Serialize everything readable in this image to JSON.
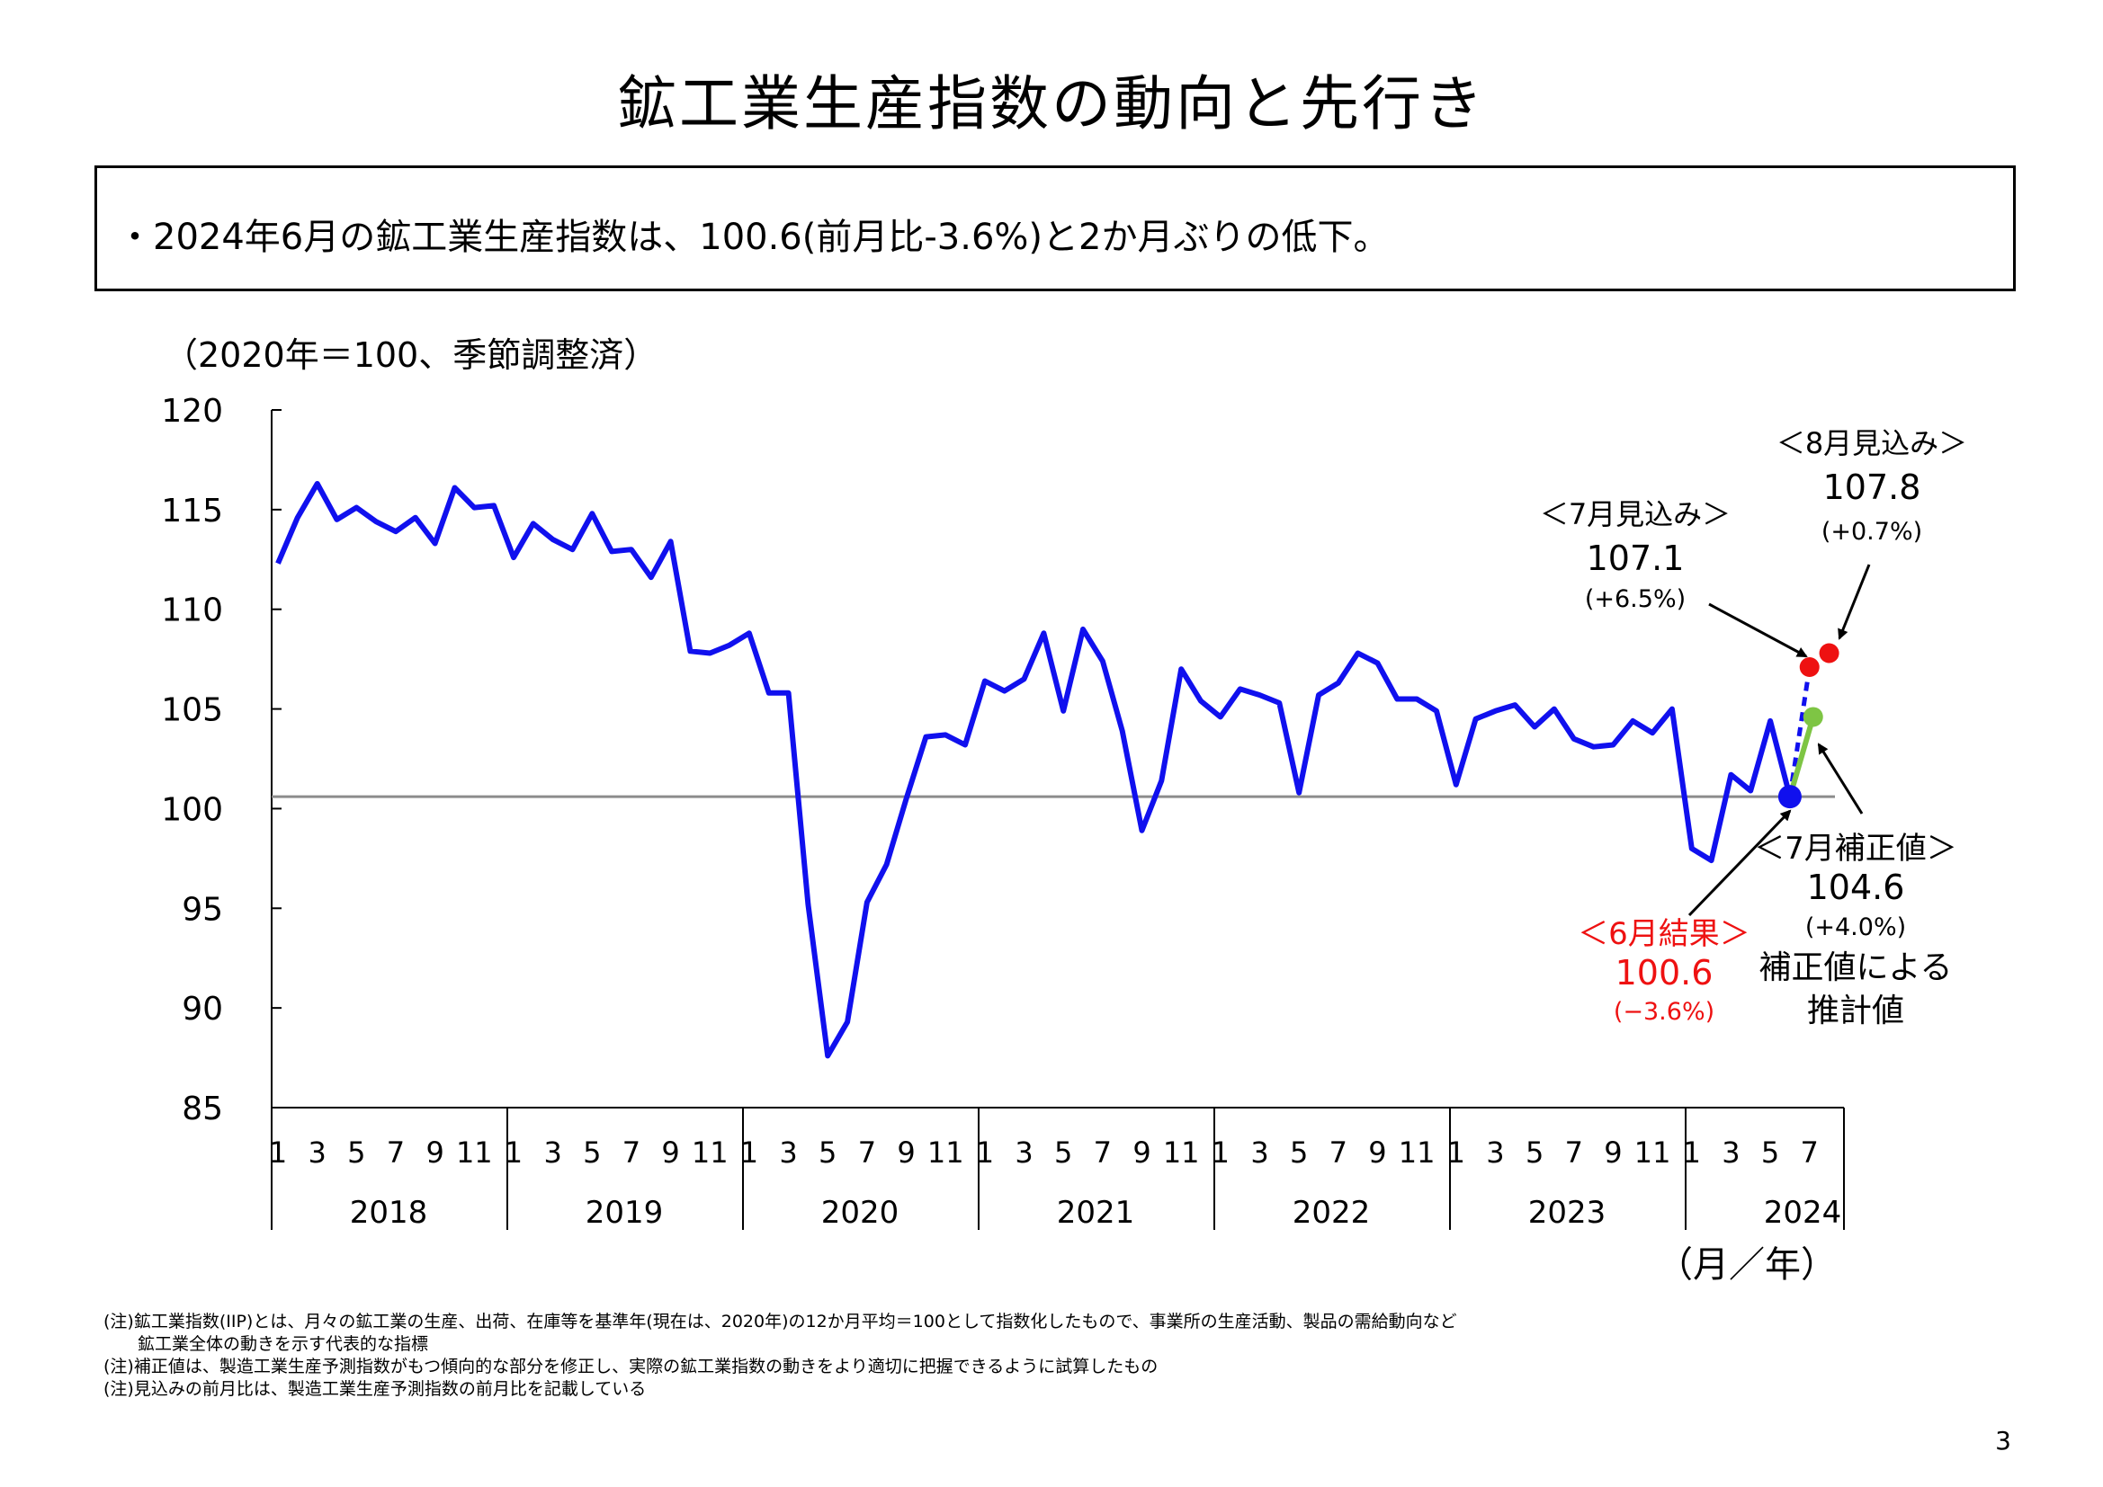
{
  "title": "鉱工業生産指数の動向と先行き",
  "summary": "・2024年6月の鉱工業生産指数は、100.6(前月比-3.6%)と2か月ぶりの低下。",
  "units_note": "（2020年＝100、季節調整済）",
  "axis_unit": "（月／年）",
  "page_number": "3",
  "notes": [
    "(注)鉱工業指数(IIP)とは、月々の鉱工業の生産、出荷、在庫等を基準年(現在は、2020年)の12か月平均＝100として指数化したもので、事業所の生産活動、製品の需給動向など",
    "　　鉱工業全体の動きを示す代表的な指標",
    "(注)補正値は、製造工業生産予測指数がもつ傾向的な部分を修正し、実際の鉱工業指数の動きをより適切に把握できるように試算したもの",
    "(注)見込みの前月比は、製造工業生産予測指数の前月比を記載している"
  ],
  "colors": {
    "series": "#1010ee",
    "reference_line": "#8c8c8c",
    "june_marker": "#1010ee",
    "forecast_markers": "#ee1111",
    "corrected_marker": "#7ec544",
    "june_label": "#ee1111"
  },
  "chart_data": {
    "type": "line",
    "ylim": [
      85,
      120
    ],
    "yticks": [
      85,
      90,
      95,
      100,
      105,
      110,
      115,
      120
    ],
    "grid": false,
    "month_tick_labels": [
      "1",
      "3",
      "5",
      "7",
      "9",
      "11"
    ],
    "last_year_month_tick_labels": [
      "1",
      "3",
      "5",
      "7"
    ],
    "years": [
      "2018",
      "2019",
      "2020",
      "2021",
      "2022",
      "2023",
      "2024"
    ],
    "reference_value": 100.6,
    "series": [
      {
        "values": [
          112.3,
          114.6,
          116.3,
          114.5,
          115.1,
          114.4,
          113.9,
          114.6,
          113.3,
          116.1,
          115.1,
          115.2,
          112.6,
          114.3,
          113.5,
          113.0,
          114.8,
          112.9,
          113.0,
          111.6,
          113.4,
          107.9,
          107.8,
          108.2,
          108.8,
          105.8,
          105.8,
          95.2,
          87.6,
          89.3,
          95.3,
          97.2,
          100.5,
          103.6,
          103.7,
          103.2,
          106.4,
          105.9,
          106.5,
          108.8,
          104.9,
          109.0,
          107.4,
          103.9,
          98.9,
          101.4,
          107.0,
          105.4,
          104.6,
          106.0,
          105.7,
          105.3,
          100.8,
          105.7,
          106.3,
          107.8,
          107.3,
          105.5,
          105.5,
          104.9,
          101.2,
          104.5,
          104.9,
          105.2,
          104.1,
          105.0,
          103.5,
          103.1,
          103.2,
          104.4,
          103.8,
          105.0,
          98.0,
          97.4,
          101.7,
          100.9,
          104.4,
          100.6
        ]
      }
    ],
    "june_result": {
      "label": "＜6月結果＞",
      "value": "100.6",
      "change": "(−3.6%)",
      "y": 100.6
    },
    "july_forecast": {
      "label": "＜7月見込み＞",
      "value": "107.1",
      "change": "(+6.5%)",
      "y": 107.1
    },
    "august_forecast": {
      "label": "＜8月見込み＞",
      "value": "107.8",
      "change": "(+0.7%)",
      "y": 107.8
    },
    "july_corrected": {
      "label": "＜7月補正値＞",
      "value": "104.6",
      "change": "(+4.0%)",
      "note_line1": "補正値による",
      "note_line2": "推計値",
      "y": 104.6
    }
  }
}
